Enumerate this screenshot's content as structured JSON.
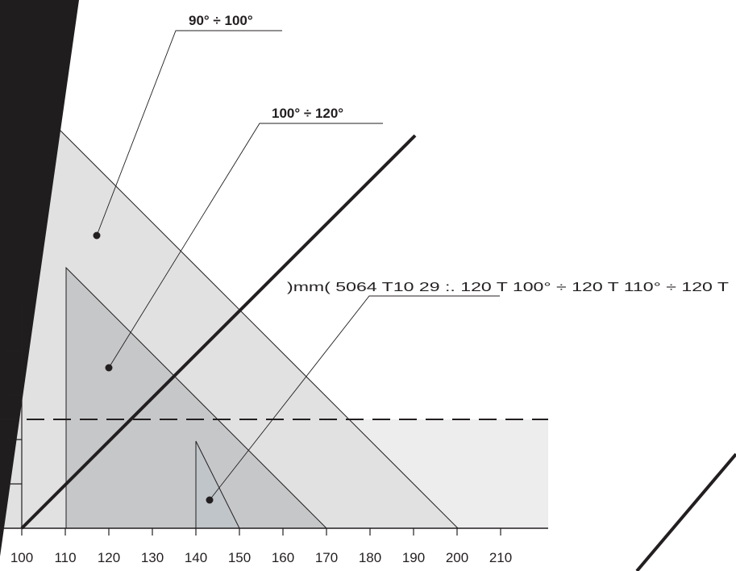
{
  "chart_data": {
    "type": "diagram",
    "x_axis": {
      "ticks": [
        100,
        110,
        120,
        130,
        140,
        150,
        160,
        170,
        180,
        190,
        200,
        210
      ]
    },
    "regions": [
      {
        "label": "90° ÷ 100°",
        "fill": "#e1e1e2"
      },
      {
        "label": "100° ÷ 120°",
        "fill": "#c6c7c9"
      },
      {
        "label": "110° ÷ 120°",
        "fill": "#bfc5c9"
      }
    ],
    "overlapping_label_text": ")mm( 5064 T10 29 :. 120 T 100° ÷ 120 T 110° ÷ 120 T",
    "colors": {
      "outer_region": "#e1e1e2",
      "middle_region": "#c6c7c9",
      "inner_region": "#bfc5c9",
      "lower_band": "#ededee",
      "ink": "#231f20"
    }
  }
}
